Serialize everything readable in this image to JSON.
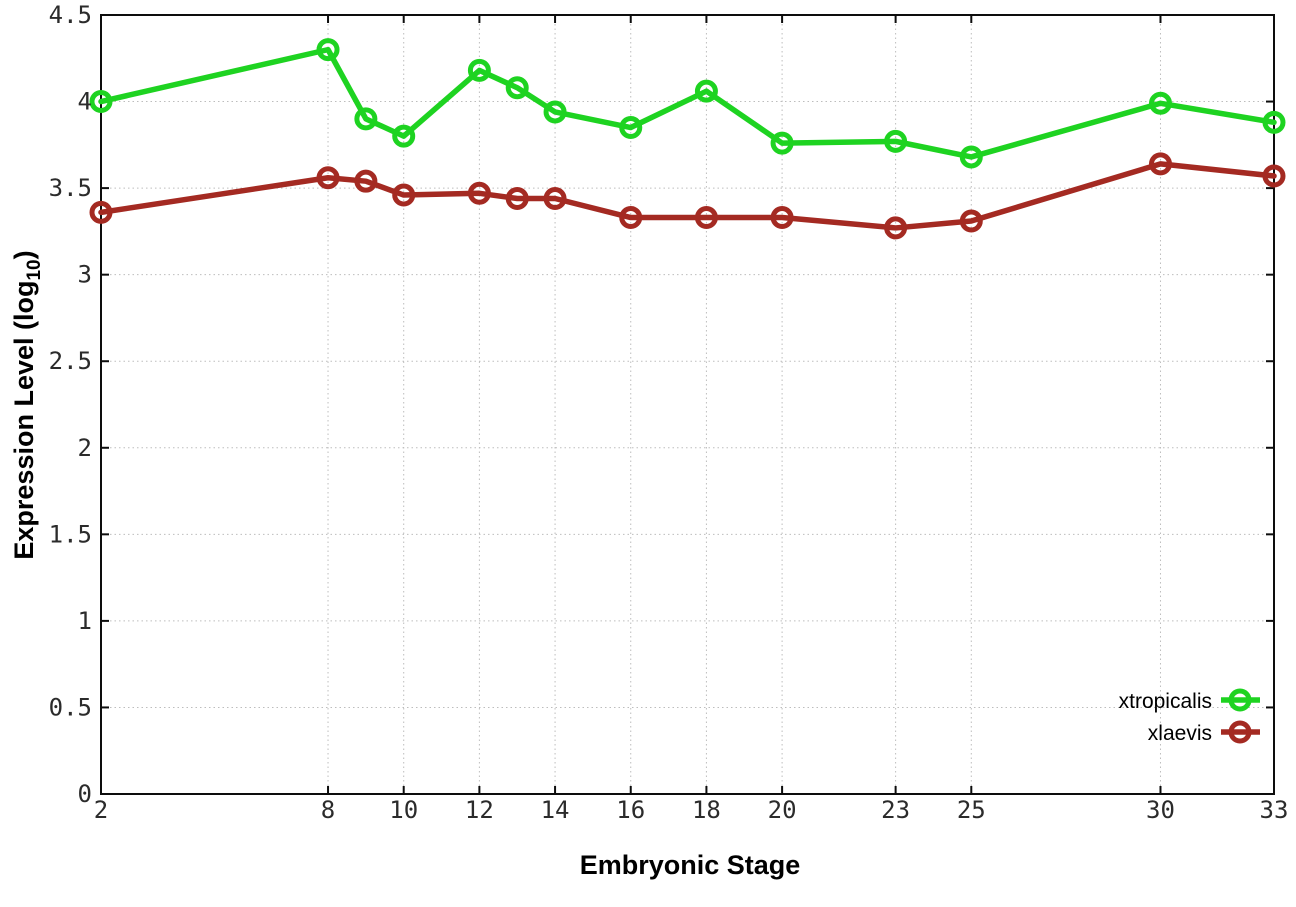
{
  "chart_data": {
    "type": "line",
    "title": "",
    "xlabel": "Embryonic Stage",
    "ylabel": "Expression Level (log10)",
    "ylabel_prefix": "Expression Level (log",
    "ylabel_sub": "10",
    "ylabel_suffix": ")",
    "xlim": [
      2,
      33
    ],
    "ylim": [
      0,
      4.5
    ],
    "grid": true,
    "legend_position": "bottom-right",
    "x_ticks": [
      2,
      8,
      10,
      12,
      14,
      16,
      18,
      20,
      23,
      25,
      30,
      33
    ],
    "x_tick_labels": [
      "2",
      "8",
      "10",
      "12",
      "14",
      "16",
      "18",
      "20",
      "23",
      "25",
      "30",
      "33"
    ],
    "y_ticks": [
      0,
      0.5,
      1,
      1.5,
      2,
      2.5,
      3,
      3.5,
      4,
      4.5
    ],
    "y_tick_labels": [
      "0",
      "0.5",
      "1",
      "1.5",
      "2",
      "2.5",
      "3",
      "3.5",
      "4",
      "4.5"
    ],
    "x": [
      2,
      8,
      9,
      10,
      12,
      13,
      14,
      16,
      18,
      20,
      23,
      25,
      30,
      33
    ],
    "series": [
      {
        "name": "xtropicalis",
        "color": "#1ed321",
        "marker": "open-circle",
        "values": [
          4.0,
          4.3,
          3.9,
          3.8,
          4.18,
          4.08,
          3.94,
          3.85,
          4.06,
          3.76,
          3.77,
          3.68,
          3.99,
          3.88
        ]
      },
      {
        "name": "xlaevis",
        "color": "#a42a22",
        "marker": "open-circle",
        "values": [
          3.36,
          3.56,
          3.54,
          3.46,
          3.47,
          3.44,
          3.44,
          3.33,
          3.33,
          3.33,
          3.27,
          3.31,
          3.64,
          3.57
        ]
      }
    ]
  }
}
